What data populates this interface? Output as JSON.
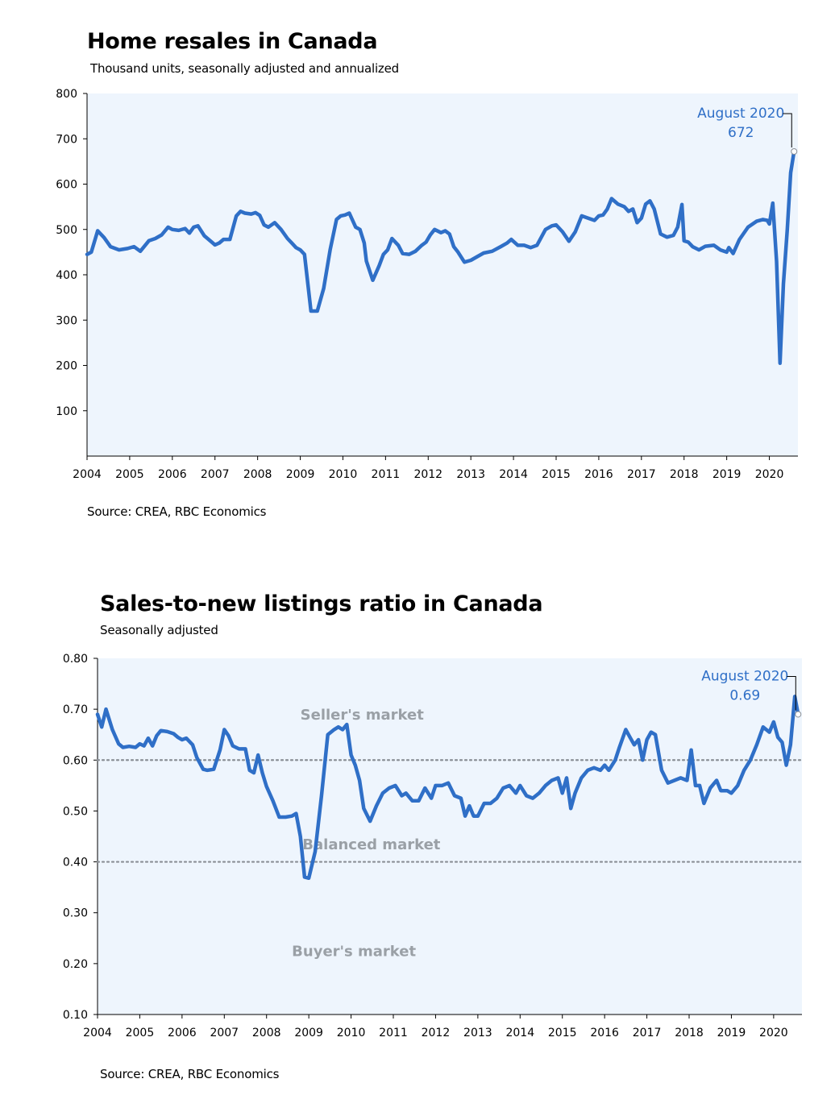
{
  "chart_data": [
    {
      "type": "line",
      "title": "Home resales in Canada",
      "subtitle": "Thousand units, seasonally adjusted and annualized",
      "source": "Source: CREA, RBC Economics",
      "xlim": [
        2004,
        2020.67
      ],
      "ylim": [
        0,
        800
      ],
      "y_ticks": [
        100,
        200,
        300,
        400,
        500,
        600,
        700,
        800
      ],
      "x_ticks": [
        "2004",
        "2005",
        "2006",
        "2007",
        "2008",
        "2009",
        "2010",
        "2011",
        "2012",
        "2013",
        "2014",
        "2015",
        "2016",
        "2017",
        "2018",
        "2019",
        "2020"
      ],
      "color": "#2f6fc7",
      "annotation": {
        "line1": "August 2020",
        "line2": "672",
        "x": 2020.58,
        "y": 672
      },
      "series": [
        {
          "x": [
            2004.0,
            2004.1,
            2004.25,
            2004.4,
            2004.55,
            2004.75,
            2004.95,
            2005.1,
            2005.25,
            2005.45,
            2005.6,
            2005.75,
            2005.9,
            2006.0,
            2006.15,
            2006.3,
            2006.4,
            2006.5,
            2006.6,
            2006.75,
            2006.95,
            2007.0,
            2007.1,
            2007.2,
            2007.35,
            2007.5,
            2007.6,
            2007.7,
            2007.85,
            2007.95,
            2008.05,
            2008.15,
            2008.25,
            2008.4,
            2008.55,
            2008.7,
            2008.8,
            2008.9,
            2009.0,
            2009.1,
            2009.25,
            2009.4,
            2009.55,
            2009.7,
            2009.85,
            2009.95,
            2010.05,
            2010.15,
            2010.3,
            2010.4,
            2010.5,
            2010.55,
            2010.7,
            2010.85,
            2010.95,
            2011.05,
            2011.15,
            2011.3,
            2011.4,
            2011.55,
            2011.7,
            2011.85,
            2011.95,
            2012.05,
            2012.15,
            2012.3,
            2012.4,
            2012.5,
            2012.6,
            2012.7,
            2012.85,
            2013.0,
            2013.15,
            2013.3,
            2013.5,
            2013.7,
            2013.85,
            2013.95,
            2014.1,
            2014.25,
            2014.4,
            2014.55,
            2014.75,
            2014.9,
            2015.0,
            2015.15,
            2015.3,
            2015.45,
            2015.6,
            2015.75,
            2015.9,
            2016.0,
            2016.1,
            2016.2,
            2016.3,
            2016.45,
            2016.6,
            2016.7,
            2016.8,
            2016.9,
            2017.0,
            2017.1,
            2017.2,
            2017.3,
            2017.45,
            2017.6,
            2017.75,
            2017.85,
            2017.95,
            2018.0,
            2018.1,
            2018.2,
            2018.35,
            2018.5,
            2018.7,
            2018.85,
            2019.0,
            2019.05,
            2019.15,
            2019.3,
            2019.5,
            2019.7,
            2019.85,
            2019.95,
            2020.0,
            2020.08,
            2020.17,
            2020.25,
            2020.33,
            2020.42,
            2020.5,
            2020.58
          ],
          "y": [
            445,
            450,
            497,
            482,
            462,
            455,
            458,
            462,
            452,
            475,
            480,
            488,
            505,
            500,
            498,
            502,
            492,
            505,
            508,
            486,
            470,
            466,
            470,
            478,
            478,
            530,
            540,
            536,
            534,
            537,
            531,
            510,
            505,
            515,
            500,
            480,
            470,
            460,
            455,
            445,
            320,
            320,
            370,
            455,
            522,
            530,
            532,
            536,
            505,
            500,
            470,
            430,
            388,
            420,
            445,
            455,
            480,
            465,
            447,
            445,
            452,
            465,
            472,
            488,
            500,
            493,
            497,
            490,
            462,
            450,
            428,
            432,
            440,
            448,
            452,
            462,
            470,
            478,
            465,
            465,
            460,
            465,
            500,
            508,
            510,
            495,
            474,
            495,
            530,
            525,
            520,
            530,
            532,
            545,
            568,
            556,
            550,
            540,
            545,
            515,
            525,
            556,
            563,
            545,
            490,
            483,
            487,
            505,
            555,
            475,
            472,
            462,
            455,
            463,
            465,
            455,
            450,
            460,
            447,
            478,
            505,
            518,
            522,
            520,
            512,
            558,
            430,
            205,
            380,
            500,
            625,
            672
          ]
        }
      ]
    },
    {
      "type": "line",
      "title": "Sales-to-new listings ratio in Canada",
      "subtitle": "Seasonally adjusted",
      "source": "Source: CREA, RBC Economics",
      "xlim": [
        2004,
        2020.67
      ],
      "ylim": [
        0.1,
        0.8
      ],
      "y_ticks": [
        "0.10",
        "0.20",
        "0.30",
        "0.40",
        "0.50",
        "0.60",
        "0.70",
        "0.80"
      ],
      "x_ticks": [
        "2004",
        "2005",
        "2006",
        "2007",
        "2008",
        "2009",
        "2010",
        "2011",
        "2012",
        "2013",
        "2014",
        "2015",
        "2016",
        "2017",
        "2018",
        "2019",
        "2020"
      ],
      "color": "#2f6fc7",
      "reference_lines": [
        0.6,
        0.4
      ],
      "zones": [
        {
          "label": "Seller's market",
          "x": 2008.8,
          "y": 0.68
        },
        {
          "label": "Balanced market",
          "x": 2008.85,
          "y": 0.425
        },
        {
          "label": "Buyer's market",
          "x": 2008.6,
          "y": 0.215
        }
      ],
      "annotation": {
        "line1": "August 2020",
        "line2": "0.69",
        "x": 2020.58,
        "y": 0.69
      },
      "series": [
        {
          "x": [
            2004.0,
            2004.1,
            2004.2,
            2004.35,
            2004.5,
            2004.6,
            2004.75,
            2004.9,
            2005.0,
            2005.1,
            2005.2,
            2005.3,
            2005.4,
            2005.5,
            2005.65,
            2005.8,
            2005.9,
            2006.0,
            2006.1,
            2006.25,
            2006.35,
            2006.5,
            2006.6,
            2006.75,
            2006.9,
            2007.0,
            2007.1,
            2007.2,
            2007.35,
            2007.5,
            2007.6,
            2007.7,
            2007.8,
            2007.9,
            2008.0,
            2008.15,
            2008.3,
            2008.45,
            2008.6,
            2008.7,
            2008.8,
            2008.9,
            2009.0,
            2009.15,
            2009.3,
            2009.45,
            2009.6,
            2009.7,
            2009.8,
            2009.9,
            2010.0,
            2010.1,
            2010.2,
            2010.3,
            2010.45,
            2010.6,
            2010.75,
            2010.9,
            2011.05,
            2011.2,
            2011.3,
            2011.45,
            2011.6,
            2011.75,
            2011.9,
            2012.0,
            2012.15,
            2012.3,
            2012.45,
            2012.6,
            2012.7,
            2012.8,
            2012.9,
            2013.0,
            2013.15,
            2013.3,
            2013.45,
            2013.6,
            2013.75,
            2013.9,
            2014.0,
            2014.15,
            2014.3,
            2014.45,
            2014.6,
            2014.75,
            2014.9,
            2015.0,
            2015.1,
            2015.2,
            2015.3,
            2015.45,
            2015.6,
            2015.75,
            2015.9,
            2016.0,
            2016.1,
            2016.25,
            2016.35,
            2016.5,
            2016.6,
            2016.7,
            2016.8,
            2016.9,
            2017.0,
            2017.1,
            2017.2,
            2017.35,
            2017.5,
            2017.65,
            2017.8,
            2017.95,
            2018.05,
            2018.15,
            2018.25,
            2018.35,
            2018.5,
            2018.65,
            2018.75,
            2018.9,
            2019.0,
            2019.15,
            2019.3,
            2019.45,
            2019.6,
            2019.75,
            2019.9,
            2020.0,
            2020.1,
            2020.2,
            2020.3,
            2020.4,
            2020.5,
            2020.58
          ],
          "y": [
            0.69,
            0.665,
            0.7,
            0.66,
            0.632,
            0.625,
            0.627,
            0.625,
            0.632,
            0.628,
            0.643,
            0.628,
            0.648,
            0.658,
            0.656,
            0.652,
            0.645,
            0.64,
            0.643,
            0.63,
            0.605,
            0.582,
            0.58,
            0.582,
            0.62,
            0.66,
            0.648,
            0.628,
            0.622,
            0.622,
            0.58,
            0.575,
            0.61,
            0.575,
            0.548,
            0.52,
            0.488,
            0.488,
            0.49,
            0.495,
            0.45,
            0.37,
            0.368,
            0.42,
            0.53,
            0.65,
            0.66,
            0.665,
            0.66,
            0.67,
            0.61,
            0.59,
            0.56,
            0.505,
            0.48,
            0.51,
            0.535,
            0.545,
            0.55,
            0.53,
            0.535,
            0.52,
            0.52,
            0.545,
            0.525,
            0.55,
            0.55,
            0.555,
            0.53,
            0.525,
            0.49,
            0.51,
            0.49,
            0.49,
            0.515,
            0.515,
            0.525,
            0.545,
            0.55,
            0.535,
            0.55,
            0.53,
            0.525,
            0.535,
            0.55,
            0.56,
            0.565,
            0.535,
            0.565,
            0.505,
            0.535,
            0.565,
            0.58,
            0.585,
            0.58,
            0.59,
            0.58,
            0.6,
            0.625,
            0.66,
            0.645,
            0.63,
            0.64,
            0.6,
            0.64,
            0.655,
            0.65,
            0.58,
            0.555,
            0.56,
            0.565,
            0.56,
            0.62,
            0.55,
            0.55,
            0.515,
            0.545,
            0.56,
            0.54,
            0.54,
            0.535,
            0.55,
            0.58,
            0.6,
            0.63,
            0.665,
            0.655,
            0.675,
            0.645,
            0.635,
            0.59,
            0.63,
            0.725,
            0.69
          ]
        }
      ]
    }
  ]
}
